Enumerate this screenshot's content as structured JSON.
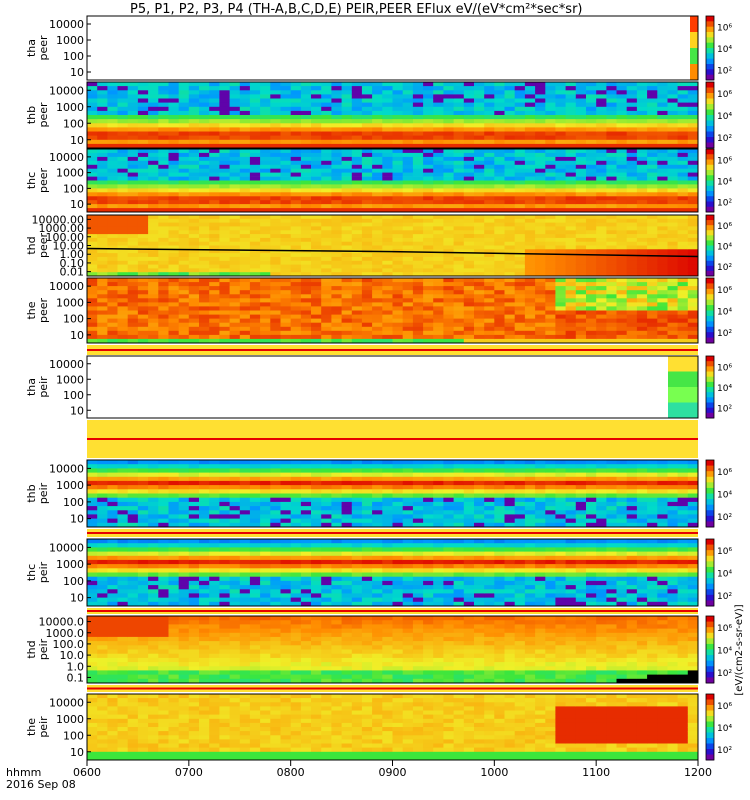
{
  "chart_data": {
    "type": "heatmap",
    "title": "P5, P1, P2, P3, P4 (TH-A,B,C,D,E) PEIR,PEER EFlux eV/(eV*cm²*sec*sr)",
    "x_tick_labels": [
      "0600",
      "0700",
      "0800",
      "0900",
      "1000",
      "1100",
      "1200"
    ],
    "x_range": [
      "0600",
      "1200"
    ],
    "footer_label": "hhmm",
    "footer_date": "2016 Sep 08",
    "colorbar_label": "[eV/(cm2-s-sr-eV)]",
    "colorbar_ticks": [
      "10²",
      "10⁴",
      "10⁶"
    ],
    "panels": [
      {
        "ylabel1": "tha",
        "ylabel2": "peer",
        "yticks": [
          "10",
          "100",
          "1000",
          "10000"
        ],
        "pattern": "empty_tail"
      },
      {
        "ylabel1": "thb",
        "ylabel2": "peer",
        "yticks": [
          "10",
          "100",
          "1000",
          "10000"
        ],
        "pattern": "eband"
      },
      {
        "ylabel1": "thc",
        "ylabel2": "peer",
        "yticks": [
          "10",
          "100",
          "1000",
          "10000"
        ],
        "pattern": "eband"
      },
      {
        "ylabel1": "thd",
        "ylabel2": "peer",
        "yticks": [
          "0.01",
          "0.10",
          "1.00",
          "10.00",
          "100.00",
          "1000.00",
          "10000.00"
        ],
        "pattern": "thd_e"
      },
      {
        "ylabel1": "the",
        "ylabel2": "peer",
        "yticks": [
          "10",
          "100",
          "1000",
          "10000"
        ],
        "pattern": "the_e"
      },
      {
        "ylabel1": "tha",
        "ylabel2": "peir",
        "yticks": [
          "10",
          "100",
          "1000",
          "10000"
        ],
        "pattern": "empty_tail_i"
      },
      {
        "ylabel1": "thb",
        "ylabel2": "peir",
        "yticks": [
          "10",
          "100",
          "1000",
          "10000"
        ],
        "pattern": "iband"
      },
      {
        "ylabel1": "thc",
        "ylabel2": "peir",
        "yticks": [
          "10",
          "100",
          "1000",
          "10000"
        ],
        "pattern": "iband"
      },
      {
        "ylabel1": "thd",
        "ylabel2": "peir",
        "yticks": [
          "0.1",
          "1.0",
          "10.0",
          "100.0",
          "1000.0",
          "10000.0"
        ],
        "pattern": "thd_i"
      },
      {
        "ylabel1": "the",
        "ylabel2": "peir",
        "yticks": [
          "10",
          "100",
          "1000",
          "10000"
        ],
        "pattern": "the_i"
      }
    ]
  }
}
